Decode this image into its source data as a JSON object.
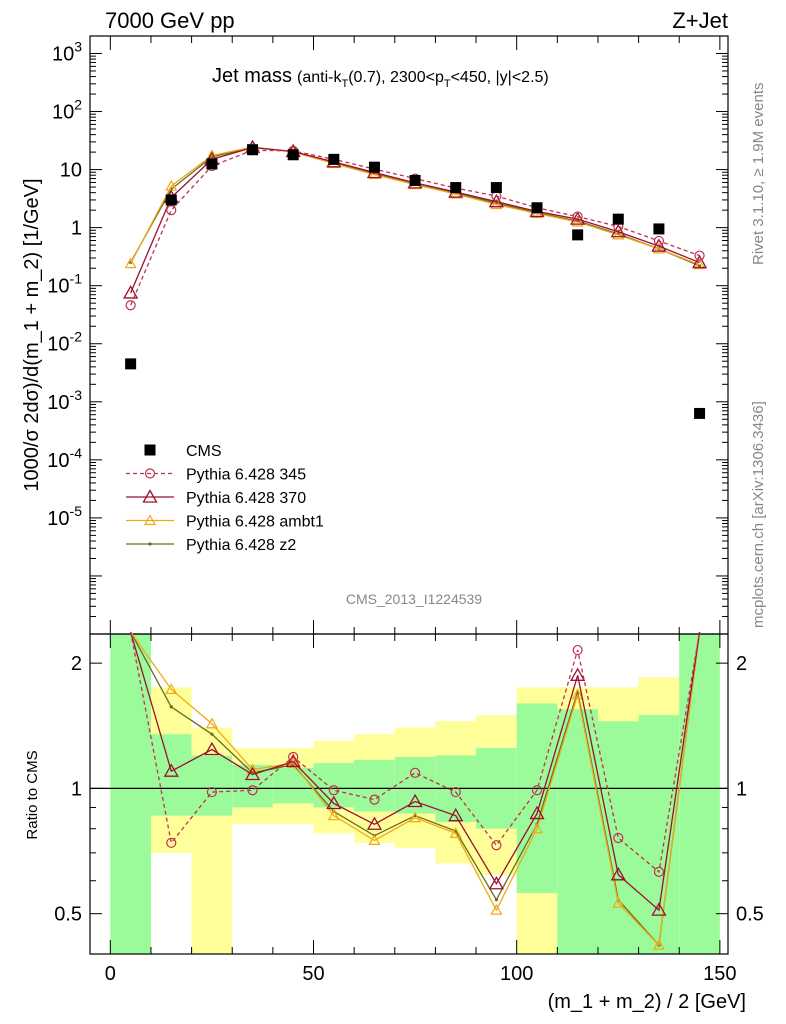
{
  "header": {
    "left": "7000 GeV pp",
    "right": "Z+Jet"
  },
  "side_text": {
    "rivet": "Rivet 3.1.10, ≥ 1.9M events",
    "mcplots": "mcplots.cern.ch [arXiv:1306.3436]"
  },
  "analysis_label": "CMS_2013_I1224539",
  "chart_data": [
    {
      "type": "scatter",
      "panel": "main",
      "title": "Jet mass",
      "subtitle": {
        "prefix": "(anti-k",
        "sub1": "T",
        "mid": "(0.7), 2300<p",
        "sub2": "T",
        "suffix": "<450, |y|<2.5)"
      },
      "ylabel": "1000/σ 2dσ)/d(m_1 + m_2) [1/GeV]",
      "xlabel": "(m_1 + m_2) / 2 [GeV]",
      "yscale": "log",
      "xlim": [
        -5,
        152
      ],
      "ylim": [
        1e-07,
        2000
      ],
      "xticks": [
        0,
        50,
        100,
        150
      ],
      "yticks": [
        {
          "value": 1000,
          "base": "10",
          "exp": "3"
        },
        {
          "value": 100,
          "base": "10",
          "exp": "2"
        },
        {
          "value": 10,
          "base": "10",
          "exp": ""
        },
        {
          "value": 1,
          "base": "1",
          "exp": ""
        },
        {
          "value": 0.1,
          "base": "10",
          "exp": "-1"
        },
        {
          "value": 0.01,
          "base": "10",
          "exp": "-2"
        },
        {
          "value": 0.001,
          "base": "10",
          "exp": "-3"
        },
        {
          "value": 0.0001,
          "base": "10",
          "exp": "-4"
        },
        {
          "value": 1e-05,
          "base": "10",
          "exp": "-5"
        }
      ],
      "x": [
        5,
        15,
        25,
        35,
        45,
        55,
        65,
        75,
        85,
        95,
        105,
        115,
        125,
        135,
        145
      ],
      "series": [
        {
          "name": "CMS",
          "color": "#000000",
          "marker": "square",
          "values": [
            0.0045,
            3.0,
            12.5,
            22.0,
            18.0,
            15.0,
            11.0,
            6.5,
            4.9,
            4.9,
            2.2,
            0.75,
            1.4,
            0.95,
            0.00063
          ]
        },
        {
          "name": "Pythia 6.428 345",
          "color": "#c03050",
          "marker": "circle",
          "dashed": true,
          "values": [
            0.046,
            2.0,
            11.5,
            21.5,
            21.0,
            15.0,
            10.2,
            7.0,
            4.8,
            3.5,
            2.2,
            1.55,
            1.05,
            0.59,
            0.33
          ]
        },
        {
          "name": "Pythia 6.428 370",
          "color": "#9b1030",
          "marker": "triangle",
          "dashed": false,
          "values": [
            0.075,
            3.3,
            15.0,
            24.0,
            20.5,
            13.6,
            8.9,
            5.9,
            4.1,
            2.8,
            1.9,
            1.4,
            0.85,
            0.48,
            0.25
          ]
        },
        {
          "name": "Pythia 6.428 ambt1",
          "color": "#f0a818",
          "marker": "triangle-small",
          "dashed": false,
          "values": [
            0.24,
            5.2,
            17.5,
            24.5,
            20.0,
            12.7,
            8.2,
            5.5,
            3.8,
            2.5,
            1.75,
            1.25,
            0.75,
            0.43,
            0.23
          ]
        },
        {
          "name": "Pythia 6.428 z2",
          "color": "#6a6a20",
          "marker": "dot",
          "dashed": false,
          "values": [
            0.25,
            4.6,
            16.5,
            24.0,
            20.5,
            13.1,
            8.5,
            5.6,
            3.9,
            2.65,
            1.8,
            1.3,
            0.78,
            0.43,
            0.22
          ]
        }
      ],
      "legend_position": "bottom-left"
    },
    {
      "type": "line",
      "panel": "ratio",
      "ylabel": "Ratio to CMS",
      "xlabel": "(m_1 + m_2) / 2 [GeV]",
      "yscale": "log",
      "xlim": [
        -5,
        152
      ],
      "ylim": [
        0.4,
        2.35
      ],
      "yticks": [
        {
          "value": 0.5,
          "label": "0.5"
        },
        {
          "value": 1,
          "label": "1"
        },
        {
          "value": 2,
          "label": "2"
        }
      ],
      "bands": {
        "edges": [
          0,
          10,
          20,
          30,
          40,
          50,
          60,
          70,
          80,
          90,
          100,
          110,
          120,
          130,
          140,
          150
        ],
        "yellow_lo": [
          0.4,
          0.7,
          0.4,
          0.82,
          0.82,
          0.78,
          0.74,
          0.72,
          0.66,
          0.62,
          0.4,
          0.4,
          0.4,
          0.4,
          0.4
        ],
        "yellow_hi": [
          2.35,
          1.75,
          1.4,
          1.25,
          1.25,
          1.3,
          1.35,
          1.4,
          1.45,
          1.5,
          1.75,
          1.75,
          1.75,
          1.85,
          2.35
        ],
        "green_lo": [
          0.4,
          0.86,
          0.86,
          0.9,
          0.92,
          0.9,
          0.88,
          0.87,
          0.83,
          0.8,
          0.56,
          0.38,
          0.4,
          0.4,
          0.4
        ],
        "green_hi": [
          2.35,
          1.35,
          1.2,
          1.14,
          1.12,
          1.15,
          1.17,
          1.19,
          1.2,
          1.25,
          1.6,
          1.55,
          1.45,
          1.5,
          2.35
        ]
      },
      "x": [
        5,
        15,
        25,
        35,
        45,
        55,
        65,
        75,
        85,
        95,
        105,
        115,
        125,
        135,
        145
      ],
      "series": [
        {
          "name": "Pythia 6.428 345",
          "values": [
            10.0,
            0.74,
            0.98,
            0.99,
            1.19,
            0.99,
            0.94,
            1.09,
            0.98,
            0.73,
            0.99,
            2.15,
            0.76,
            0.63,
            10.0
          ]
        },
        {
          "name": "Pythia 6.428 370",
          "values": [
            10.0,
            1.1,
            1.24,
            1.08,
            1.16,
            0.92,
            0.82,
            0.93,
            0.86,
            0.59,
            0.87,
            1.87,
            0.62,
            0.51,
            10.0
          ]
        },
        {
          "name": "Pythia 6.428 ambt1",
          "values": [
            10.0,
            1.73,
            1.43,
            1.11,
            1.15,
            0.86,
            0.75,
            0.85,
            0.78,
            0.51,
            0.8,
            1.68,
            0.53,
            0.42,
            10.0
          ]
        },
        {
          "name": "Pythia 6.428 z2",
          "values": [
            10.0,
            1.57,
            1.35,
            1.09,
            1.14,
            0.88,
            0.77,
            0.86,
            0.79,
            0.54,
            0.82,
            1.71,
            0.54,
            0.42,
            10.0
          ]
        }
      ]
    }
  ]
}
